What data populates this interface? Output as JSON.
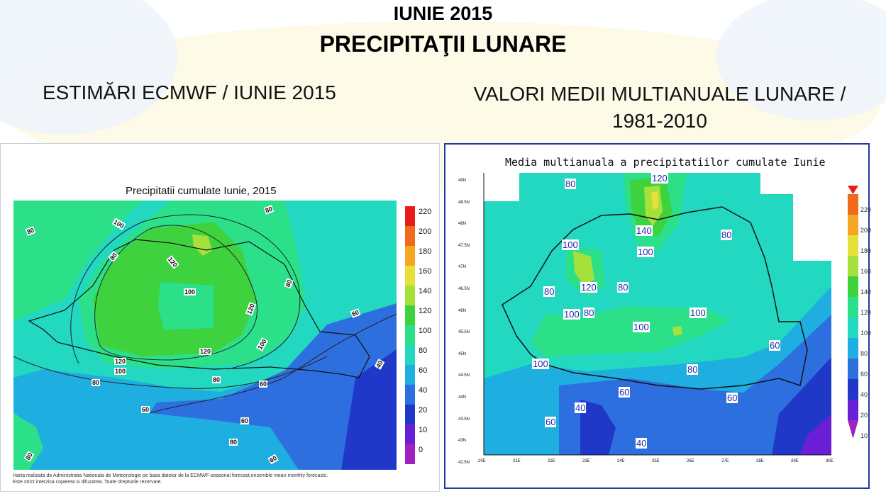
{
  "header": {
    "title_line1": "IUNIE 2015",
    "title_line2": "PRECIPITAŢII LUNARE",
    "subtitle_left": "ESTIMĂRI ECMWF / IUNIE 2015",
    "subtitle_right_line1": "VALORI MEDII MULTIANUALE LUNARE /",
    "subtitle_right_line2": "1981-2010"
  },
  "left_map": {
    "title": "Precipitatii cumulate Iunie, 2015",
    "legend_values": [
      "220",
      "200",
      "180",
      "160",
      "140",
      "120",
      "100",
      "80",
      "60",
      "40",
      "20",
      "10",
      "0"
    ],
    "contour_labels": [
      "80",
      "100",
      "80",
      "120",
      "100",
      "120",
      "80",
      "80",
      "120",
      "100",
      "120",
      "100",
      "80",
      "80",
      "60",
      "60",
      "60",
      "40",
      "60",
      "80",
      "80",
      "60"
    ],
    "credit_line1": "Harta realizata de Administratia Nationala de Meteorologie pe baza datelor de la ECMWF-seasonal forecast,ensemble mean monthly forecasts.",
    "credit_line2": "Este strict interzisa copierea si difuzarea. Toate drepturile rezervate."
  },
  "right_map": {
    "title": "Media multianuala a precipitatiilor cumulate Iunie",
    "legend_values": [
      "220",
      "200",
      "180",
      "160",
      "140",
      "120",
      "100",
      "80",
      "60",
      "40",
      "20",
      "10"
    ],
    "lat_labels": [
      "49N",
      "48.5N",
      "48N",
      "47.5N",
      "47N",
      "46.5N",
      "46N",
      "45.5N",
      "45N",
      "44.5N",
      "44N",
      "43.5N",
      "43N",
      "42.5N"
    ],
    "lon_labels": [
      "20E",
      "21E",
      "22E",
      "23E",
      "24E",
      "25E",
      "26E",
      "27E",
      "28E",
      "29E",
      "30E"
    ],
    "contour_labels": [
      "80",
      "120",
      "140",
      "100",
      "80",
      "100",
      "120",
      "80",
      "80",
      "100",
      "80",
      "100",
      "100",
      "60",
      "100",
      "80",
      "60",
      "60",
      "40",
      "60",
      "40"
    ]
  },
  "colors": {
    "c0_10": "#a020c0",
    "c10_20": "#6a1fd6",
    "c20_40": "#2038c8",
    "c40_60": "#2e6fe0",
    "c60_80": "#1faee0",
    "c80_100": "#22d8c0",
    "c100_120": "#2ce08a",
    "c120_140": "#3fd23f",
    "c140_160": "#a6e03a",
    "c160_180": "#e6e03a",
    "c180_200": "#f5a623",
    "c200_220": "#f06a1c",
    "c220": "#e81c1c"
  }
}
